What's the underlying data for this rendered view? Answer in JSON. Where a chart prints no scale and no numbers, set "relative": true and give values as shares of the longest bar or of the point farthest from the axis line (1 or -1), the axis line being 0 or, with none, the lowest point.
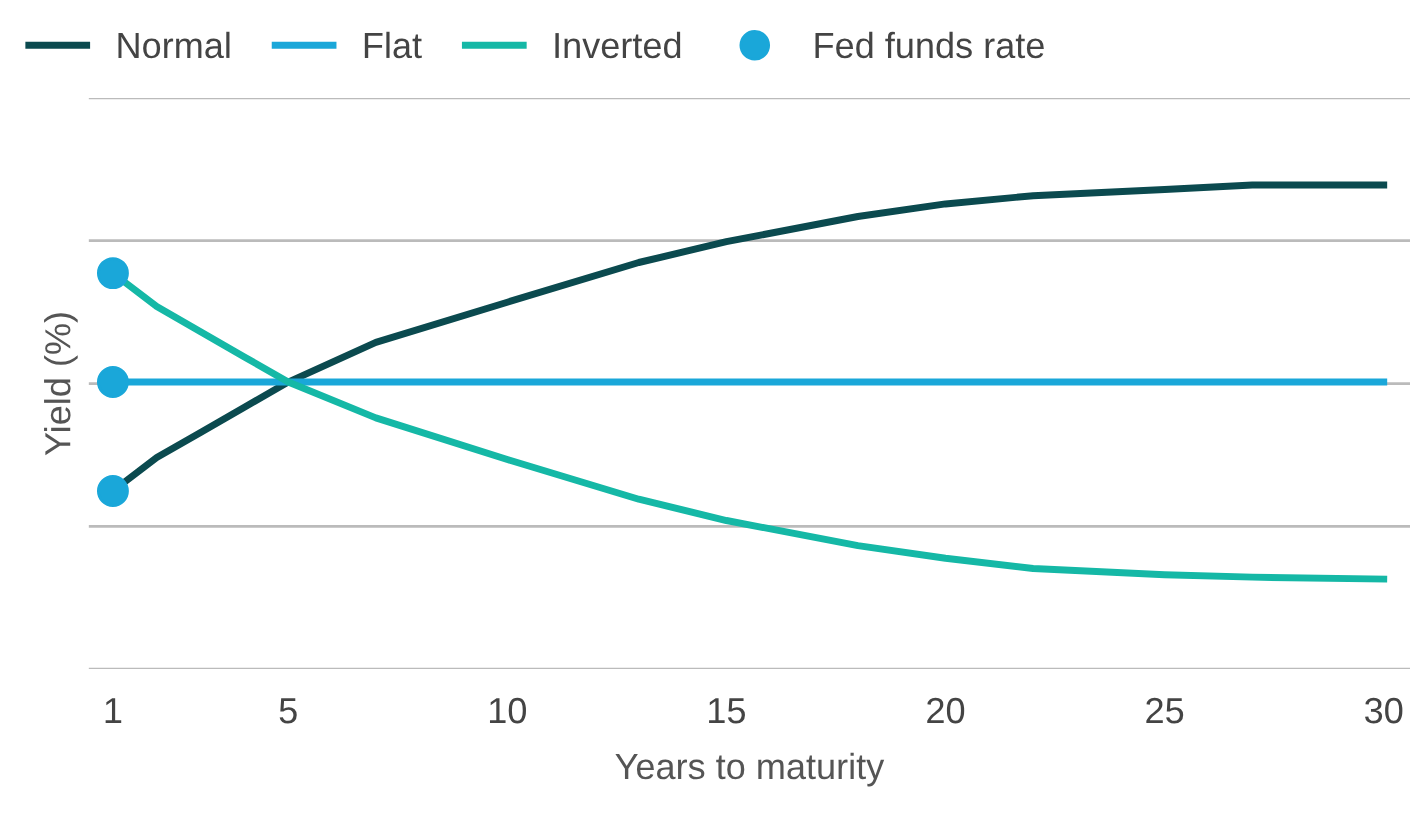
{
  "chart_data": {
    "type": "line",
    "relative": true,
    "xlabel": "Years to maturity",
    "ylabel": "Yield (%)",
    "xlim": [
      0.45,
      30.6
    ],
    "xticks": [
      1,
      5,
      10,
      15,
      20,
      25,
      30
    ],
    "grid": "y",
    "legend": "top",
    "tick_labels": "x",
    "series": [
      {
        "name": "Normal",
        "color": "#0b4a4f",
        "x": [
          1,
          2,
          3,
          4,
          5,
          7,
          10,
          13,
          15,
          18,
          20,
          22,
          25,
          27,
          30
        ],
        "values": [
          0.368,
          0.437,
          0.489,
          0.541,
          0.593,
          0.675,
          0.758,
          0.84,
          0.883,
          0.935,
          0.961,
          0.978,
          0.991,
          1,
          1
        ]
      },
      {
        "name": "Flat",
        "color": "#1aa7d9",
        "x": [
          1,
          30
        ],
        "values": [
          0.593,
          0.593
        ]
      },
      {
        "name": "Inverted",
        "color": "#15b8a6",
        "x": [
          1,
          2,
          3,
          4,
          5,
          7,
          10,
          13,
          15,
          18,
          20,
          22,
          25,
          27,
          30
        ],
        "values": [
          0.818,
          0.749,
          0.697,
          0.645,
          0.593,
          0.519,
          0.433,
          0.351,
          0.307,
          0.255,
          0.229,
          0.208,
          0.195,
          0.19,
          0.186
        ]
      },
      {
        "name": "Fed funds rate",
        "type": "scatter",
        "marker": "circle",
        "color": "#1aa7d9",
        "x": [
          1,
          1,
          1
        ],
        "values": [
          0.818,
          0.593,
          0.368
        ]
      }
    ]
  }
}
